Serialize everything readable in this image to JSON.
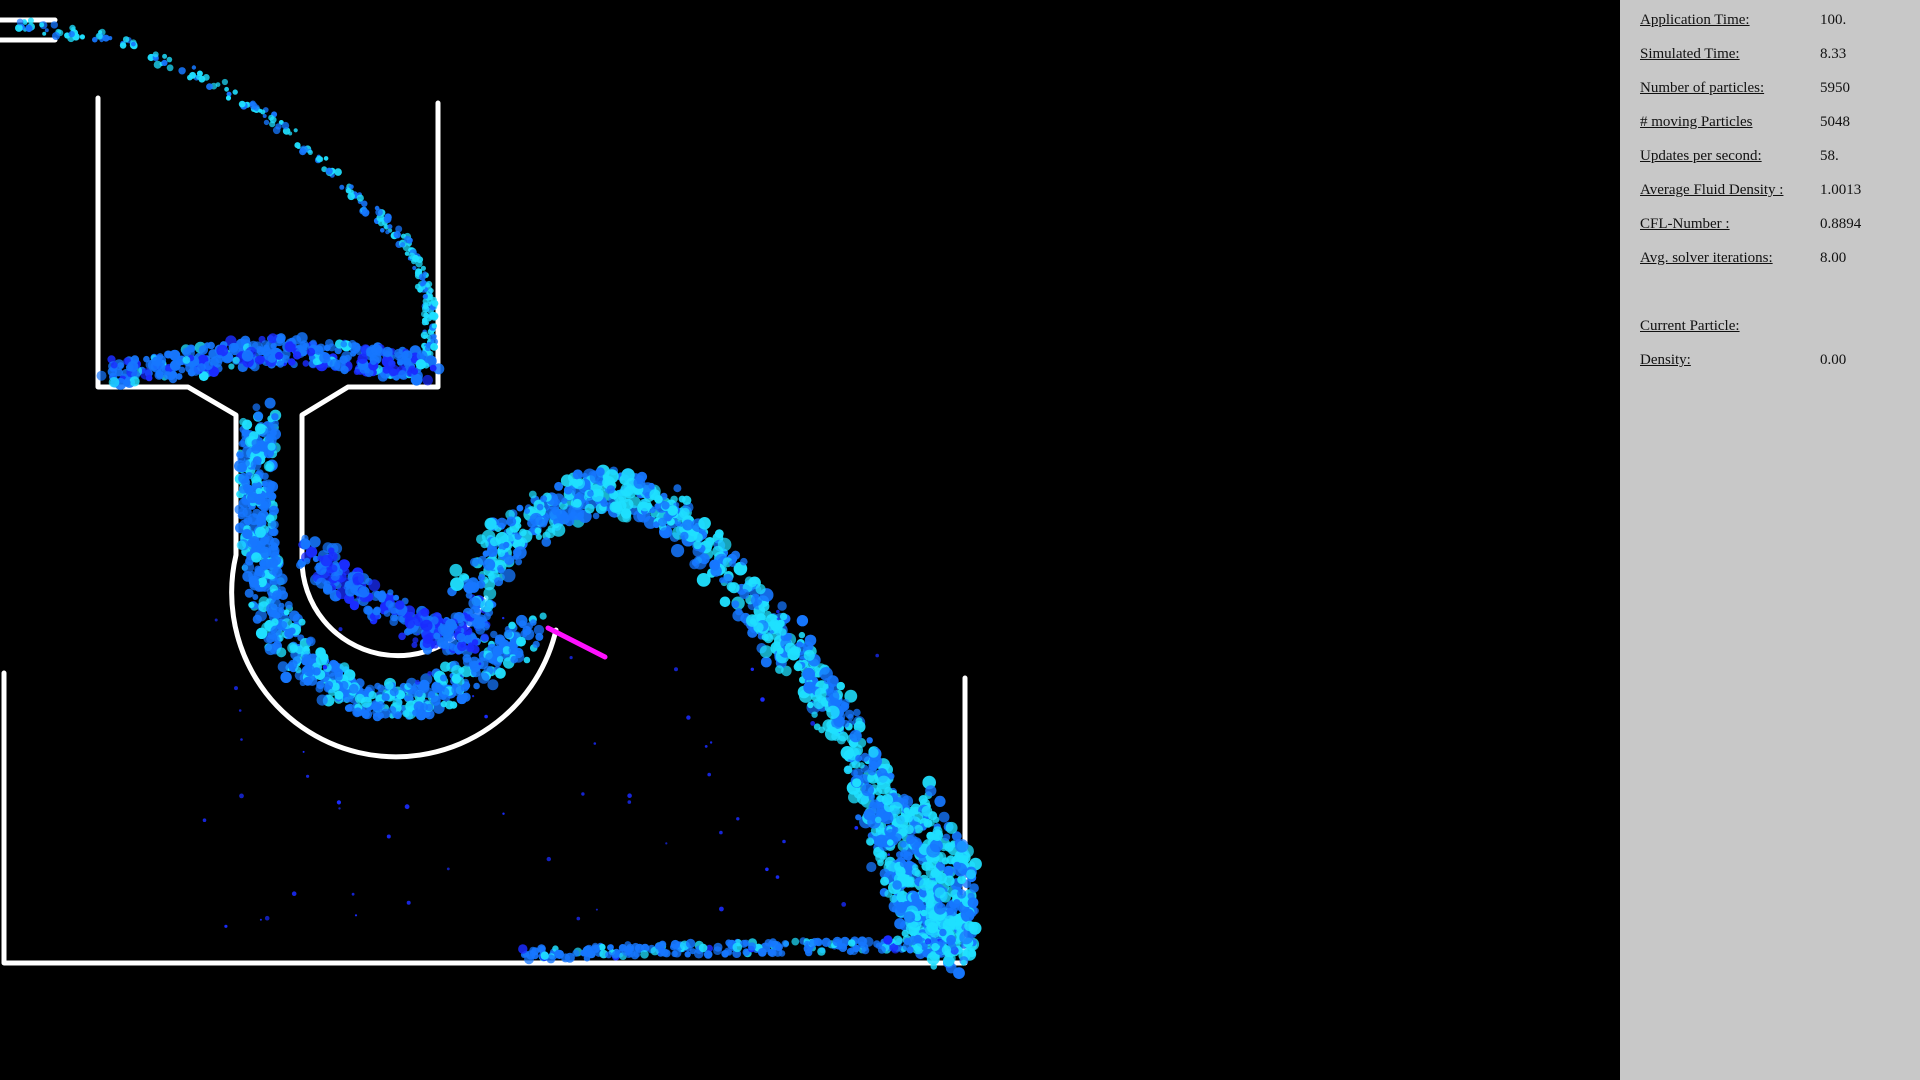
{
  "stats": [
    {
      "label": "Application Time:",
      "value": "100."
    },
    {
      "label": "Simulated Time:",
      "value": "8.33"
    },
    {
      "label": "Number of particles:",
      "value": "5950"
    },
    {
      "label": "# moving Particles",
      "value": "5048"
    },
    {
      "label": "Updates per second:",
      "value": "58."
    },
    {
      "label": "Average Fluid Density :",
      "value": "1.0013"
    },
    {
      "label": "CFL-Number :",
      "value": "0.8894"
    },
    {
      "label": "Avg. solver iterations:",
      "value": "8.00"
    }
  ],
  "current": {
    "heading": "Current Particle:",
    "density_label": "Density:",
    "density_value": "0.00"
  },
  "colors": {
    "background": "#000000",
    "panel": "#c8c8c8",
    "walls": "#ffffff",
    "fluid_dark": "#1a2cff",
    "fluid_mid": "#1677ff",
    "fluid_light": "#1fe0ff",
    "marker": "#ff10ff"
  }
}
